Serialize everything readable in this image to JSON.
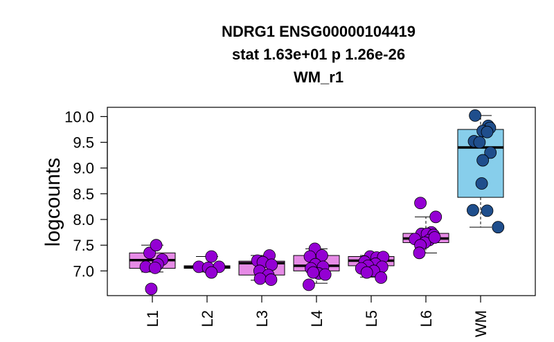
{
  "chart_data": {
    "type": "box",
    "title_lines": [
      "NDRG1 ENSG00000104419",
      "stat 1.63e+01 p 1.26e-26",
      "WM_r1"
    ],
    "xlabel": "",
    "ylabel": "logcounts",
    "ylim": [
      6.52,
      10.18
    ],
    "y_ticks": [
      "7.0",
      "7.5",
      "8.0",
      "8.5",
      "9.0",
      "9.5",
      "10.0"
    ],
    "categories": [
      "L1",
      "L2",
      "L3",
      "L4",
      "L5",
      "L6",
      "WM"
    ],
    "colors": {
      "box_layer": "#e68be6",
      "box_wm": "#87ceeb",
      "point_layer": "#9400d3",
      "point_wm": "#1f4e8c",
      "point_stroke": "#000000"
    },
    "groups": [
      {
        "name": "L1",
        "fill": "layer",
        "q1": 7.05,
        "median": 7.21,
        "q3": 7.35,
        "whisker_low": 6.98,
        "whisker_high": 7.5,
        "points": [
          [
            -0.05,
            7.35
          ],
          [
            0.18,
            7.22
          ],
          [
            0.1,
            7.13
          ],
          [
            -0.12,
            7.08
          ],
          [
            0.05,
            7.06
          ],
          [
            -0.02,
            6.65
          ],
          [
            0.07,
            7.5
          ]
        ]
      },
      {
        "name": "L2",
        "fill": "layer",
        "q1": 7.05,
        "median": 7.07,
        "q3": 7.1,
        "whisker_low": 6.98,
        "whisker_high": 7.28,
        "points": [
          [
            0.08,
            7.28
          ],
          [
            -0.15,
            7.08
          ],
          [
            0.02,
            7.06
          ],
          [
            0.22,
            7.08
          ],
          [
            0.08,
            6.97
          ]
        ]
      },
      {
        "name": "L3",
        "fill": "layer",
        "q1": 6.92,
        "median": 7.15,
        "q3": 7.19,
        "whisker_low": 6.82,
        "whisker_high": 7.3,
        "points": [
          [
            0.14,
            7.3
          ],
          [
            -0.08,
            7.2
          ],
          [
            0.02,
            7.17
          ],
          [
            0.18,
            7.12
          ],
          [
            -0.04,
            7.0
          ],
          [
            0.12,
            6.92
          ],
          [
            -0.03,
            6.85
          ],
          [
            0.17,
            6.83
          ]
        ]
      },
      {
        "name": "L4",
        "fill": "layer",
        "q1": 7.0,
        "median": 7.1,
        "q3": 7.3,
        "whisker_low": 6.76,
        "whisker_high": 7.43,
        "points": [
          [
            -0.03,
            7.43
          ],
          [
            0.1,
            7.3
          ],
          [
            -0.12,
            7.28
          ],
          [
            -0.02,
            7.13
          ],
          [
            0.12,
            7.08
          ],
          [
            -0.1,
            7.05
          ],
          [
            0.04,
            6.95
          ],
          [
            -0.06,
            6.97
          ],
          [
            0.16,
            6.93
          ],
          [
            -0.14,
            6.73
          ]
        ]
      },
      {
        "name": "L5",
        "fill": "layer",
        "q1": 7.1,
        "median": 7.2,
        "q3": 7.28,
        "whisker_low": 6.88,
        "whisker_high": 7.3,
        "points": [
          [
            -0.02,
            7.28
          ],
          [
            0.1,
            7.26
          ],
          [
            0.22,
            7.27
          ],
          [
            -0.12,
            7.18
          ],
          [
            0.08,
            7.14
          ],
          [
            -0.06,
            7.1
          ],
          [
            0.2,
            7.08
          ],
          [
            -0.18,
            7.05
          ],
          [
            0.05,
            7.0
          ],
          [
            -0.08,
            6.97
          ],
          [
            0.18,
            6.87
          ]
        ]
      },
      {
        "name": "L6",
        "fill": "layer",
        "q1": 7.55,
        "median": 7.63,
        "q3": 7.73,
        "whisker_low": 7.35,
        "whisker_high": 8.05,
        "points": [
          [
            -0.1,
            8.32
          ],
          [
            0.18,
            8.05
          ],
          [
            0.1,
            7.75
          ],
          [
            -0.08,
            7.72
          ],
          [
            0.02,
            7.72
          ],
          [
            0.14,
            7.7
          ],
          [
            -0.2,
            7.62
          ],
          [
            0.06,
            7.6
          ],
          [
            -0.02,
            7.55
          ],
          [
            -0.1,
            7.5
          ],
          [
            -0.12,
            7.35
          ],
          [
            0.16,
            7.65
          ]
        ]
      },
      {
        "name": "WM",
        "fill": "wm",
        "q1": 8.43,
        "median": 9.4,
        "q3": 9.75,
        "whisker_low": 7.85,
        "whisker_high": 10.02,
        "points": [
          [
            -0.1,
            10.02
          ],
          [
            0.14,
            9.82
          ],
          [
            0.17,
            9.78
          ],
          [
            0.04,
            9.72
          ],
          [
            0.12,
            9.7
          ],
          [
            -0.12,
            9.52
          ],
          [
            -0.02,
            9.5
          ],
          [
            0.18,
            9.3
          ],
          [
            0.04,
            9.15
          ],
          [
            0.02,
            8.7
          ],
          [
            -0.14,
            8.18
          ],
          [
            0.12,
            8.17
          ],
          [
            0.32,
            7.85
          ]
        ]
      }
    ]
  }
}
